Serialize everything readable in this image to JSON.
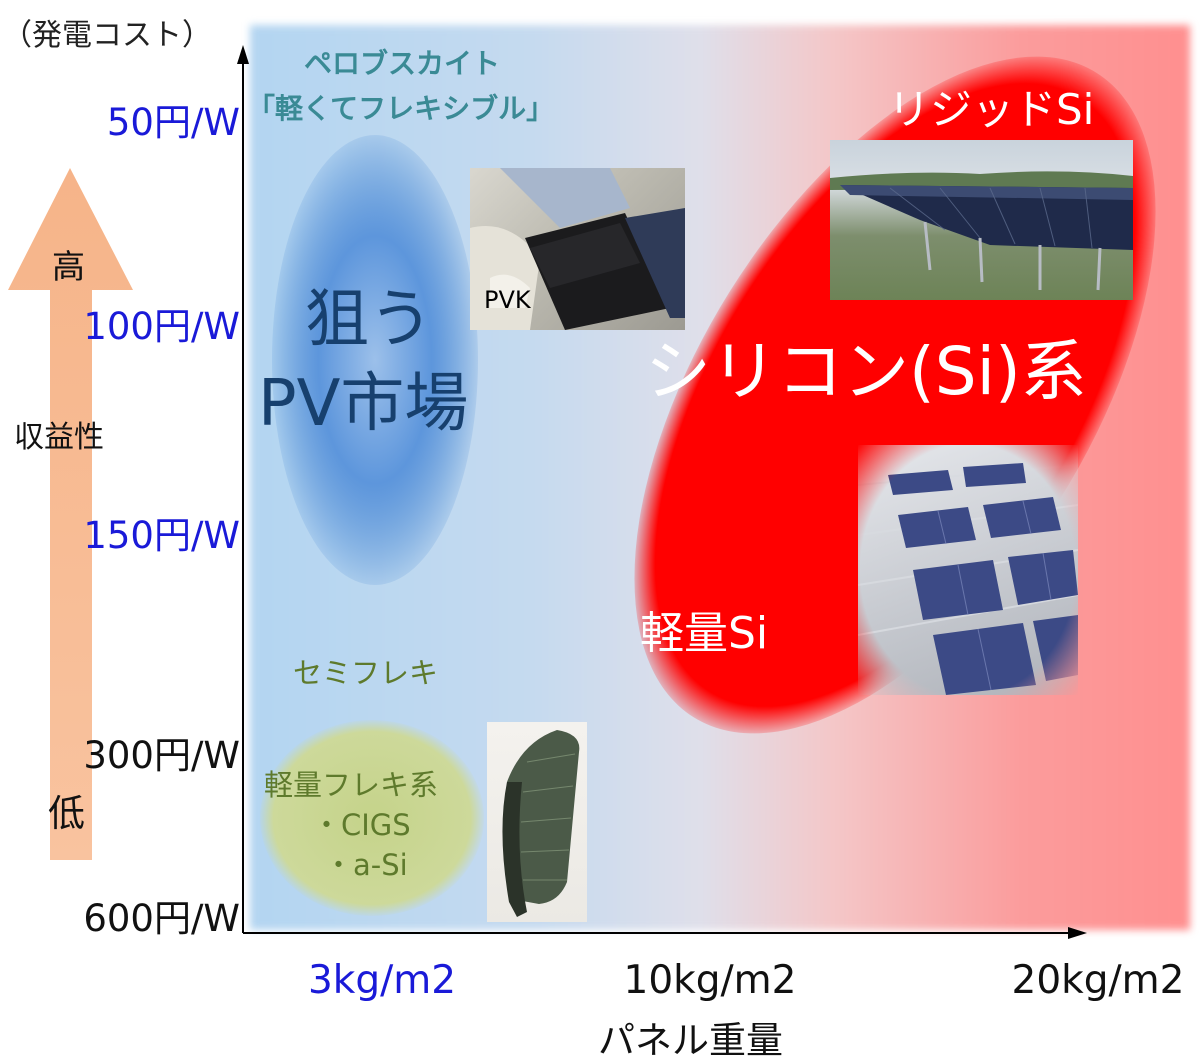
{
  "chart_data": {
    "type": "bubble-map",
    "ylabel": "（発電コスト）",
    "xlabel": "パネル重量",
    "y_ticks": [
      {
        "label": "50円/W",
        "color": "#1a1ad8"
      },
      {
        "label": "100円/W",
        "color": "#1a1ad8"
      },
      {
        "label": "150円/W",
        "color": "#1a1ad8"
      },
      {
        "label": "300円/W",
        "color": "#111111"
      },
      {
        "label": "600円/W",
        "color": "#111111"
      }
    ],
    "x_ticks": [
      {
        "label": "3kg/m2",
        "color": "#1a1ad8"
      },
      {
        "label": "10kg/m2",
        "color": "#111111"
      },
      {
        "label": "20kg/m2",
        "color": "#111111"
      }
    ],
    "regions": [
      {
        "name": "狙う PV市場",
        "line1": "狙う",
        "line2": "PV市場",
        "color": "#3b7fd0"
      },
      {
        "name": "シリコン(Si)系",
        "color": "#ff0000"
      },
      {
        "name": "軽量フレキ系",
        "color": "#c9d68f"
      }
    ]
  },
  "scale": {
    "profit_label": "収益性",
    "high": "高",
    "low": "低",
    "arrow_color": "#f7b98a"
  },
  "annotations": {
    "perovskite_title": "ペロブスカイト",
    "perovskite_sub": "「軽くてフレキシブル」",
    "pvk_label": "PVK",
    "rigid_si": "リジッドSi",
    "silicon_family": "シリコン(Si)系",
    "light_si": "軽量Si",
    "semi_flex": "セミフレキ",
    "light_flex": "軽量フレキ系",
    "cigs": "・CIGS",
    "asi": "・a-Si"
  },
  "colors": {
    "teal_text": "#3a8a95",
    "olive_text": "#5e7a2c",
    "blue_text": "#1a1ad8",
    "pv_market_text": "#17406e"
  }
}
